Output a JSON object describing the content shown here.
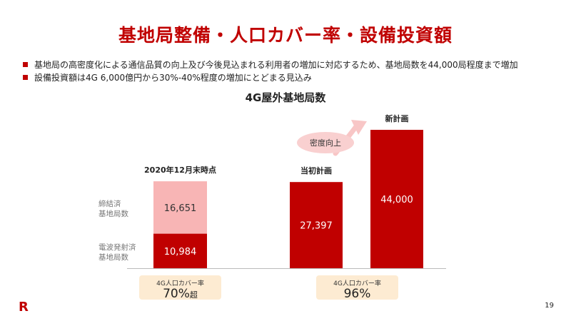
{
  "slide": {
    "title": "基地局整備・人口カバー率・設備投資額",
    "bullets": [
      "基地局の高密度化による通信品質の向上及び今後見込まれる利用者の増加に対応するため、基地局数を44,000局程度まで増加",
      "設備投資額は4G 6,000億円から30%-40%程度の増加にとどまる見込み"
    ],
    "page_number": "19",
    "logo_text": "R"
  },
  "coverage": [
    {
      "label": "4G人口カバー率",
      "value": "70%",
      "suffix": "超"
    },
    {
      "label": "4G人口カバー率",
      "value": "96%",
      "suffix": ""
    }
  ],
  "colors": {
    "accent": "#c00000",
    "pink": "#f8b5b5",
    "arrow": "#f8c6c6",
    "bubble": "#f9d0d0",
    "coverage_bg": "#fdebd2"
  },
  "chart_data": {
    "type": "bar",
    "title": "4G屋外基地局数",
    "categories": [
      "2020年12月末時点",
      "当初計画",
      "新計画"
    ],
    "stacked": true,
    "series": [
      {
        "name": "電波発射済基地局数",
        "values": [
          10984,
          27397,
          44000
        ]
      },
      {
        "name": "締結済基地局数",
        "values": [
          16651,
          0,
          0
        ]
      }
    ],
    "annotation": "密度向上",
    "ylim": [
      0,
      44000
    ],
    "grid": false
  }
}
